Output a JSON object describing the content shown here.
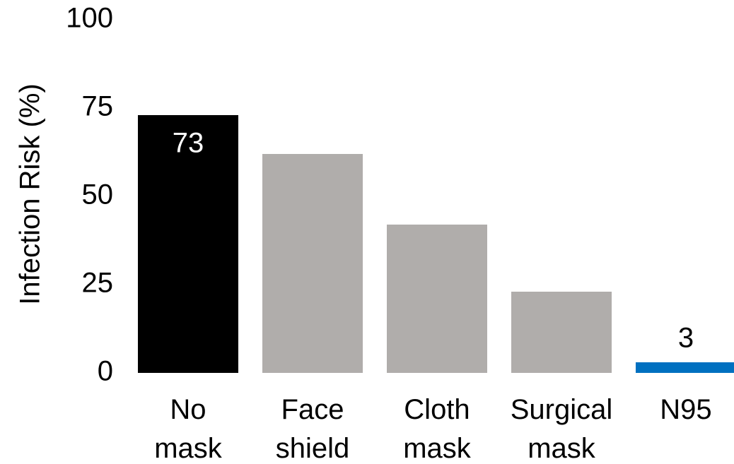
{
  "chart_data": {
    "type": "bar",
    "y_axis_label": "Infection Risk (%)",
    "categories": [
      [
        "No",
        "mask"
      ],
      [
        "Face",
        "shield"
      ],
      [
        "Cloth",
        "mask"
      ],
      [
        "Surgical",
        "mask"
      ],
      [
        "N95"
      ]
    ],
    "values": [
      73,
      62,
      42,
      23,
      3
    ],
    "value_labels": [
      "73",
      null,
      null,
      null,
      "3"
    ],
    "colors": [
      "#000000",
      "#b0adab",
      "#b0adab",
      "#b0adab",
      "#0070c0"
    ],
    "ylim": [
      0,
      100
    ],
    "yticks": [
      0,
      25,
      50,
      75,
      100
    ],
    "grid": false
  }
}
